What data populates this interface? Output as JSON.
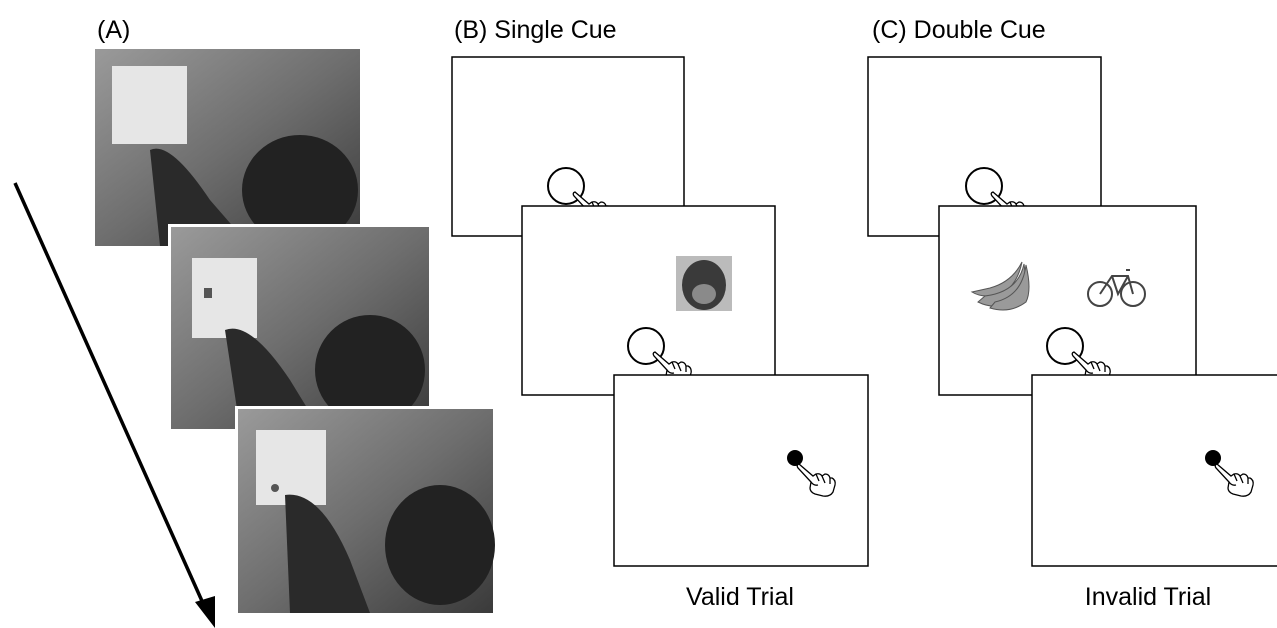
{
  "panels": [
    {
      "label": "(A)"
    },
    {
      "label": "(B) Single Cue",
      "caption": "Valid Trial"
    },
    {
      "label": "(C) Double Cue",
      "caption": "Invalid Trial"
    }
  ]
}
